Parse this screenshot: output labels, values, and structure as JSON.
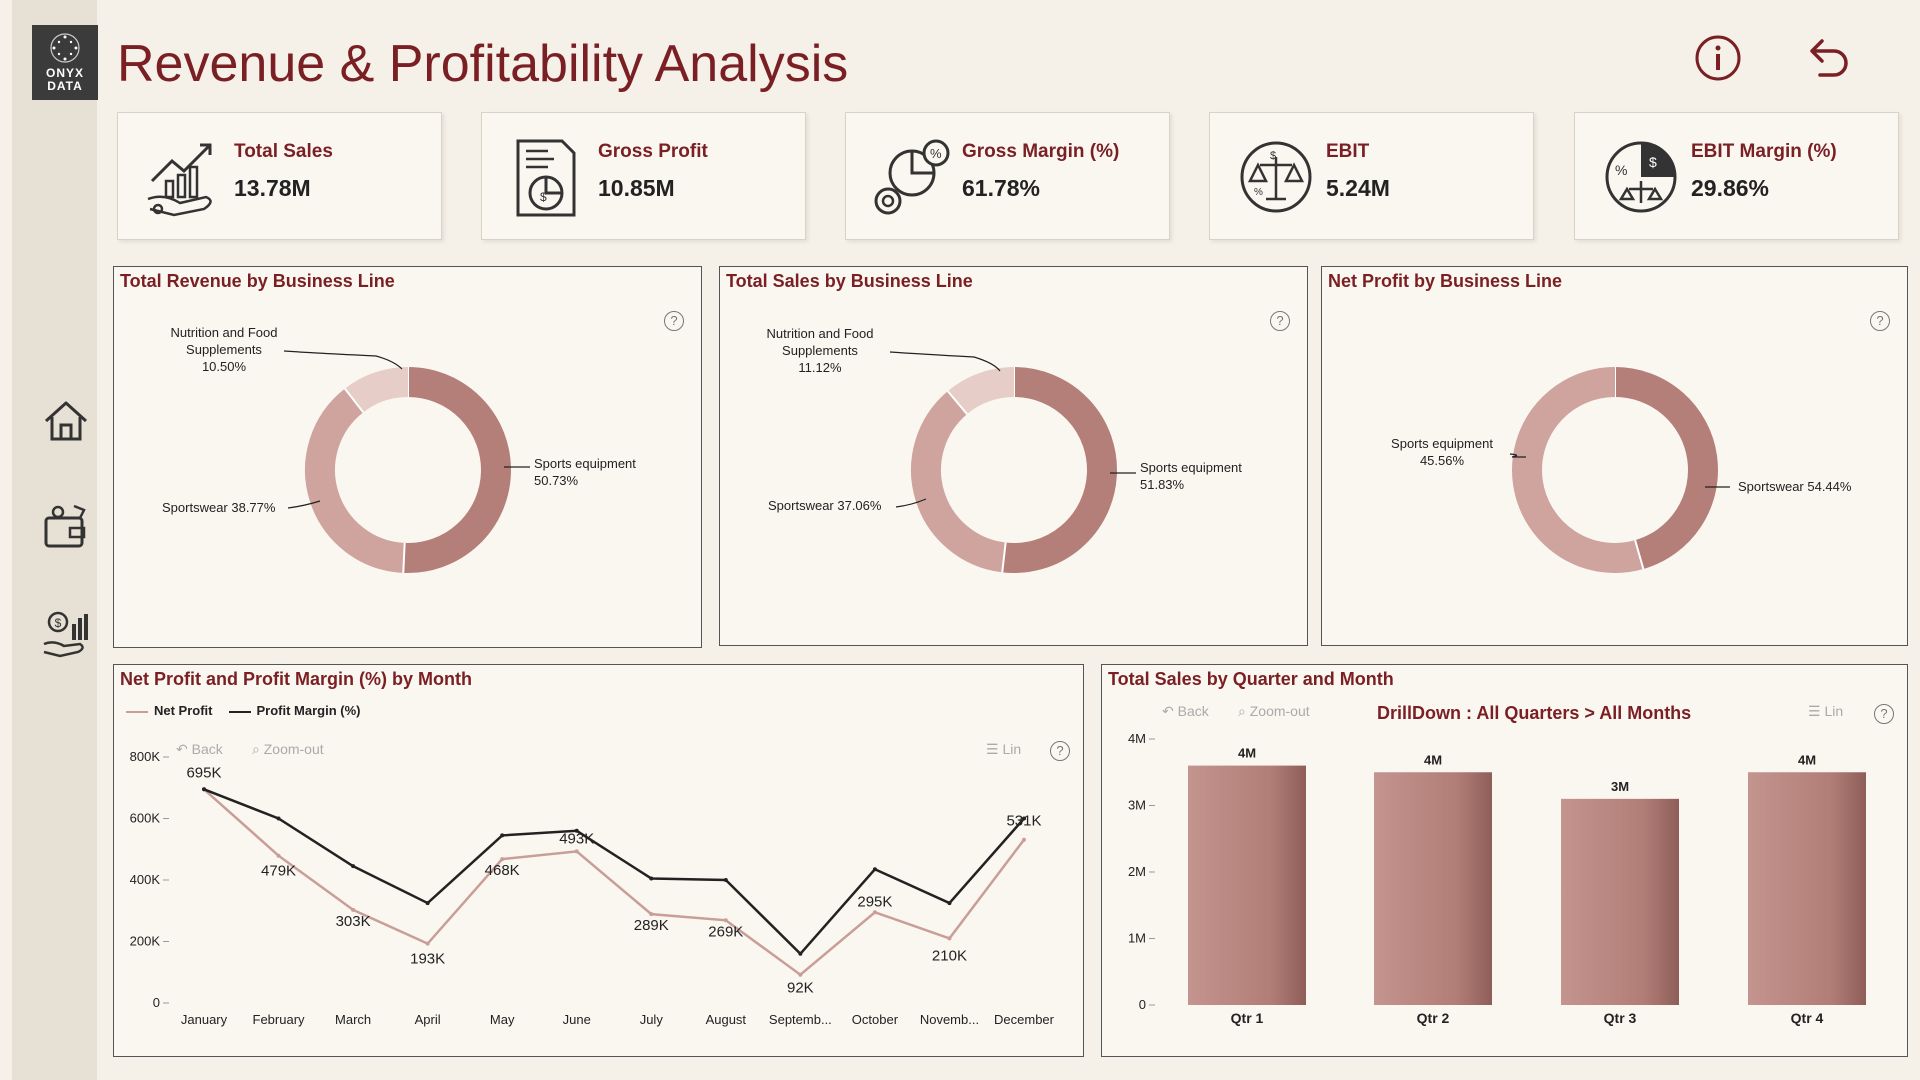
{
  "app": {
    "logo_line1": "ONYX",
    "logo_line2": "DATA",
    "title": "Revenue & Profitability Analysis"
  },
  "nav": [
    "home-icon",
    "wallet-icon",
    "finance-icon"
  ],
  "header_icons": [
    "info-icon",
    "undo-icon"
  ],
  "kpis": [
    {
      "label": "Total Sales",
      "value": "13.78M",
      "icon": "growth-hand-icon"
    },
    {
      "label": "Gross Profit",
      "value": "10.85M",
      "icon": "report-icon"
    },
    {
      "label": "Gross Margin (%)",
      "value": "61.78%",
      "icon": "pie-coin-icon"
    },
    {
      "label": "EBIT",
      "value": "5.24M",
      "icon": "balance-scale-icon"
    },
    {
      "label": "EBIT Margin (%)",
      "value": "29.86%",
      "icon": "scale-dollar-icon"
    }
  ],
  "donuts": [
    {
      "title": "Total Revenue by Business Line",
      "labels": [
        {
          "text": "Nutrition and Food\nSupplements\n10.50%"
        },
        {
          "text": "Sports equipment\n50.73%"
        },
        {
          "text": "Sportswear 38.77%"
        }
      ]
    },
    {
      "title": "Total Sales by Business Line",
      "labels": [
        {
          "text": "Nutrition and Food\nSupplements\n11.12%"
        },
        {
          "text": "Sports equipment\n51.83%"
        },
        {
          "text": "Sportswear 37.06%"
        }
      ]
    },
    {
      "title": "Net Profit by Business Line",
      "labels": [
        {
          "text": "Sports equipment\n45.56%"
        },
        {
          "text": "Sportswear 54.44%"
        }
      ]
    }
  ],
  "line_panel": {
    "title": "Net Profit and Profit Margin (%) by Month",
    "legend": [
      "Net Profit",
      "Profit Margin (%)"
    ],
    "toolbar": {
      "back": "Back",
      "zoom": "Zoom-out",
      "lin": "Lin"
    }
  },
  "bar_panel": {
    "title": "Total Sales by Quarter and Month",
    "drill": "DrillDown : All Quarters > All Months",
    "toolbar": {
      "back": "Back",
      "zoom": "Zoom-out",
      "lin": "Lin"
    }
  },
  "chart_data": [
    {
      "type": "pie",
      "title": "Total Revenue by Business Line",
      "categories": [
        "Nutrition and Food Supplements",
        "Sports equipment",
        "Sportswear"
      ],
      "values": [
        10.5,
        50.73,
        38.77
      ]
    },
    {
      "type": "pie",
      "title": "Total Sales by Business Line",
      "categories": [
        "Nutrition and Food Supplements",
        "Sports equipment",
        "Sportswear"
      ],
      "values": [
        11.12,
        51.83,
        37.06
      ]
    },
    {
      "type": "pie",
      "title": "Net Profit by Business Line",
      "categories": [
        "Sports equipment",
        "Sportswear"
      ],
      "values": [
        45.56,
        54.44
      ]
    },
    {
      "type": "line",
      "title": "Net Profit and Profit Margin (%) by Month",
      "categories": [
        "January",
        "February",
        "March",
        "April",
        "May",
        "June",
        "July",
        "August",
        "Septemb...",
        "October",
        "Novemb...",
        "December"
      ],
      "yticks": [
        "0",
        "200K",
        "400K",
        "600K",
        "800K"
      ],
      "ylim": [
        0,
        800000
      ],
      "series": [
        {
          "name": "Net Profit",
          "values": [
            695000,
            479000,
            303000,
            193000,
            468000,
            493000,
            289000,
            269000,
            92000,
            295000,
            210000,
            531000
          ],
          "labels": [
            "695K",
            "479K",
            "303K",
            "193K",
            "468K",
            "493K",
            "289K",
            "269K",
            "92K",
            "295K",
            "210K",
            "531K"
          ]
        },
        {
          "name": "Profit Margin (%)",
          "values": [
            695000,
            600000,
            445000,
            325000,
            545000,
            560000,
            405000,
            400000,
            160000,
            435000,
            325000,
            600000
          ]
        }
      ],
      "colors": {
        "Net Profit": "#c99d98",
        "Profit Margin (%)": "#222222"
      },
      "legend": "top-left",
      "grid": false
    },
    {
      "type": "bar",
      "title": "Total Sales by Quarter and Month",
      "categories": [
        "Qtr 1",
        "Qtr 2",
        "Qtr 3",
        "Qtr 4"
      ],
      "values": [
        3600000,
        3500000,
        3100000,
        3500000
      ],
      "labels": [
        "4M",
        "4M",
        "3M",
        "4M"
      ],
      "yticks": [
        "0",
        "1M",
        "2M",
        "3M",
        "4M"
      ],
      "ylim": [
        0,
        4000000
      ],
      "grid": false
    }
  ]
}
